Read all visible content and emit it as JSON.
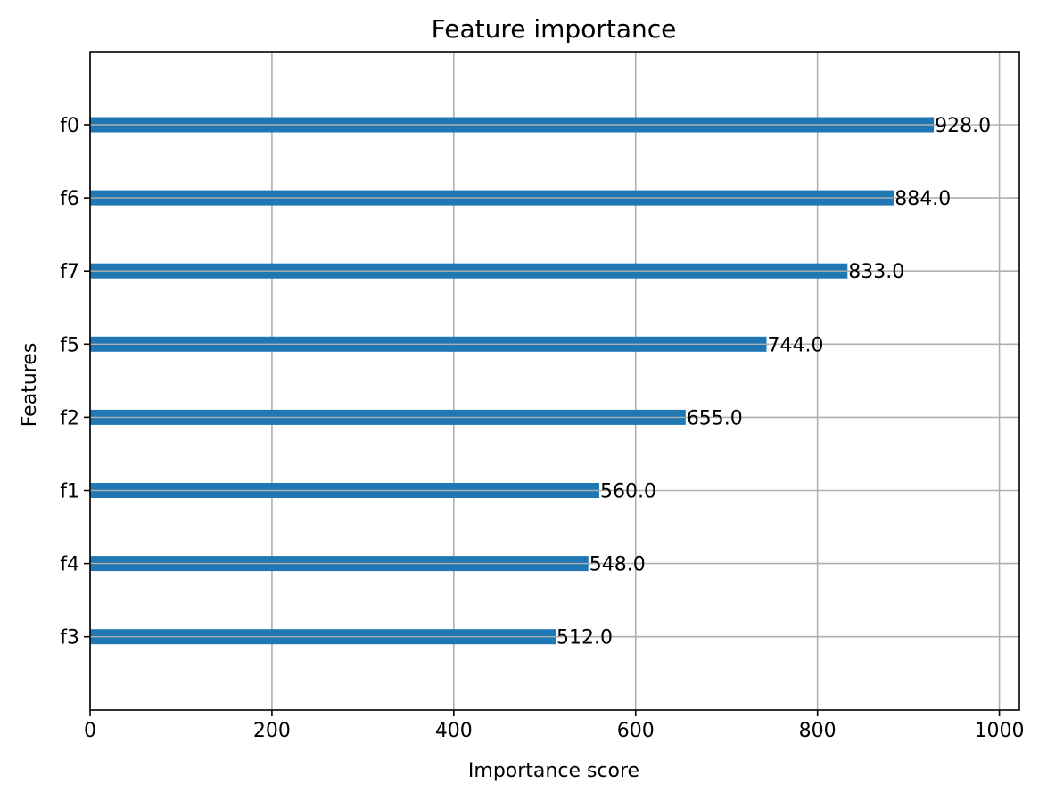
{
  "chart_data": {
    "type": "bar",
    "orientation": "horizontal",
    "title": "Feature importance",
    "xlabel": "Importance score",
    "ylabel": "Features",
    "categories": [
      "f0",
      "f6",
      "f7",
      "f5",
      "f2",
      "f1",
      "f4",
      "f3"
    ],
    "values": [
      928.0,
      884.0,
      833.0,
      744.0,
      655.0,
      560.0,
      548.0,
      512.0
    ],
    "value_labels": [
      "928.0",
      "884.0",
      "833.0",
      "744.0",
      "655.0",
      "560.0",
      "548.0",
      "512.0"
    ],
    "xlim": [
      0,
      1022
    ],
    "xticks": [
      0,
      200,
      400,
      600,
      800,
      1000
    ],
    "xtick_labels": [
      "0",
      "200",
      "400",
      "600",
      "800",
      "1000"
    ],
    "grid": true,
    "bar_color": "#1f77b4",
    "grid_color": "#b0b0b0"
  }
}
